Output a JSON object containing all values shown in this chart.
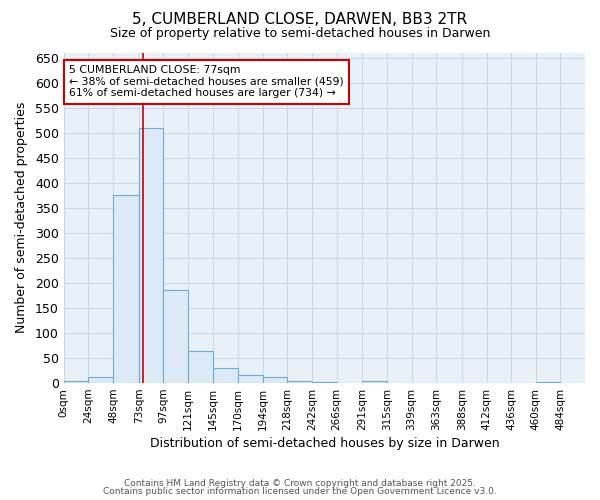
{
  "title_line1": "5, CUMBERLAND CLOSE, DARWEN, BB3 2TR",
  "title_line2": "Size of property relative to semi-detached houses in Darwen",
  "xlabel": "Distribution of semi-detached houses by size in Darwen",
  "ylabel": "Number of semi-detached properties",
  "bin_labels": [
    "0sqm",
    "24sqm",
    "48sqm",
    "73sqm",
    "97sqm",
    "121sqm",
    "145sqm",
    "170sqm",
    "194sqm",
    "218sqm",
    "242sqm",
    "266sqm",
    "291sqm",
    "315sqm",
    "339sqm",
    "363sqm",
    "388sqm",
    "412sqm",
    "436sqm",
    "460sqm",
    "484sqm"
  ],
  "bin_edges": [
    0,
    24,
    48,
    73,
    97,
    121,
    145,
    170,
    194,
    218,
    242,
    266,
    291,
    315,
    339,
    363,
    388,
    412,
    436,
    460,
    484,
    508
  ],
  "bar_heights": [
    4,
    12,
    375,
    510,
    185,
    65,
    30,
    16,
    12,
    5,
    2,
    0,
    5,
    0,
    0,
    0,
    0,
    0,
    0,
    2,
    0
  ],
  "bar_color": "#dce9f7",
  "bar_edge_color": "#6aaed6",
  "property_size": 77,
  "vline_color": "#cc0000",
  "annotation_text": "5 CUMBERLAND CLOSE: 77sqm\n← 38% of semi-detached houses are smaller (459)\n61% of semi-detached houses are larger (734) →",
  "annotation_box_color": "white",
  "annotation_box_edge_color": "#cc0000",
  "ylim": [
    0,
    660
  ],
  "yticks": [
    0,
    50,
    100,
    150,
    200,
    250,
    300,
    350,
    400,
    450,
    500,
    550,
    600,
    650
  ],
  "grid_color": "#c8d8ec",
  "background_color": "white",
  "plot_bg_color": "#e8f0f8",
  "footer_line1": "Contains HM Land Registry data © Crown copyright and database right 2025.",
  "footer_line2": "Contains public sector information licensed under the Open Government Licence v3.0.",
  "figsize": [
    6.0,
    5.0
  ],
  "dpi": 100
}
